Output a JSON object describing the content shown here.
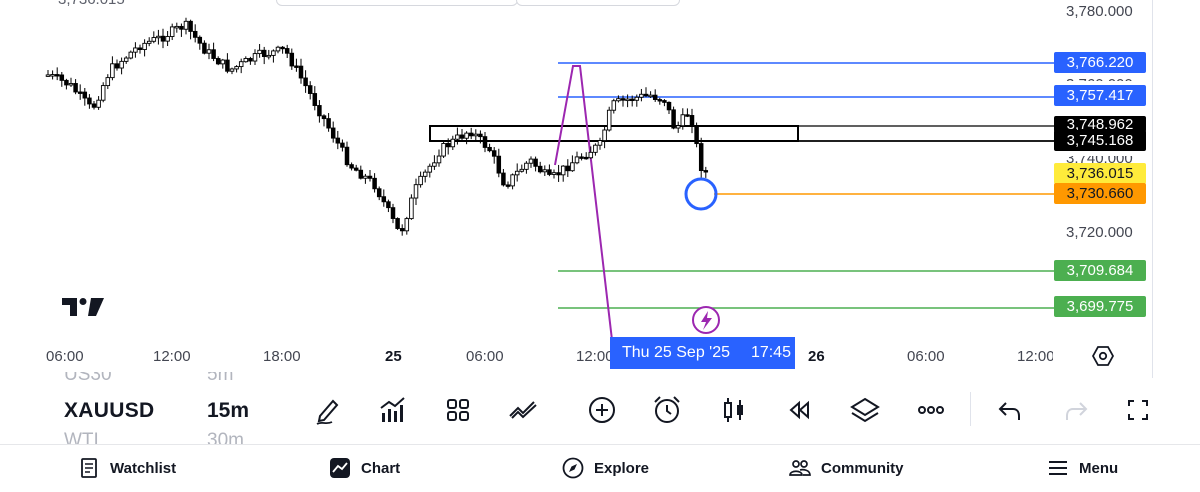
{
  "top": {
    "price_cut_text": "3,736.015"
  },
  "chart": {
    "symbol": "XAUUSD",
    "interval": "15m",
    "price_axis": {
      "labels": [
        "3,780.000",
        "3,760.000",
        "3,740.000",
        "3,720.000"
      ],
      "tags": [
        {
          "text": "3,766.220",
          "color": "#2962ff"
        },
        {
          "text": "3,757.417",
          "color": "#2962ff"
        },
        {
          "text": "3,748.962",
          "color": "#000000"
        },
        {
          "text": "3,745.168",
          "color": "#000000"
        },
        {
          "text": "3,736.015",
          "color": "#ffeb3b"
        },
        {
          "text": "3,730.660",
          "color": "#ff9800"
        },
        {
          "text": "3,709.684",
          "color": "#4caf50"
        },
        {
          "text": "3,699.775",
          "color": "#4caf50"
        }
      ]
    },
    "time_axis": {
      "labels": [
        "06:00",
        "12:00",
        "18:00",
        "25",
        "06:00",
        "12:00",
        "26",
        "06:00",
        "12:00"
      ],
      "crosshair_date": "Thu 25 Sep '25",
      "crosshair_time": "17:45"
    },
    "colors": {
      "blue_line": "#2962ff",
      "orange_line": "#ff9800",
      "green_line": "#4caf50",
      "purple_line": "#9c27b0",
      "candles": "#000000"
    }
  },
  "toolbar": {
    "symbol_prev": "US30",
    "symbol_current": "XAUUSD",
    "symbol_next": "WTI",
    "tf_prev": "5m",
    "tf_current": "15m",
    "tf_next": "30m",
    "tools": [
      "pencil-icon",
      "indicators-icon",
      "grid-icon",
      "pattern-icon",
      "add-icon",
      "alarm-icon",
      "candles-icon",
      "replay-icon",
      "layers-icon",
      "more-icon",
      "undo-icon",
      "redo-icon",
      "fullscreen-icon"
    ]
  },
  "nav": {
    "items": [
      {
        "label": "Watchlist",
        "icon": "watchlist-icon"
      },
      {
        "label": "Chart",
        "icon": "chart-icon"
      },
      {
        "label": "Explore",
        "icon": "compass-icon"
      },
      {
        "label": "Community",
        "icon": "community-icon"
      },
      {
        "label": "Menu",
        "icon": "menu-icon"
      }
    ]
  }
}
